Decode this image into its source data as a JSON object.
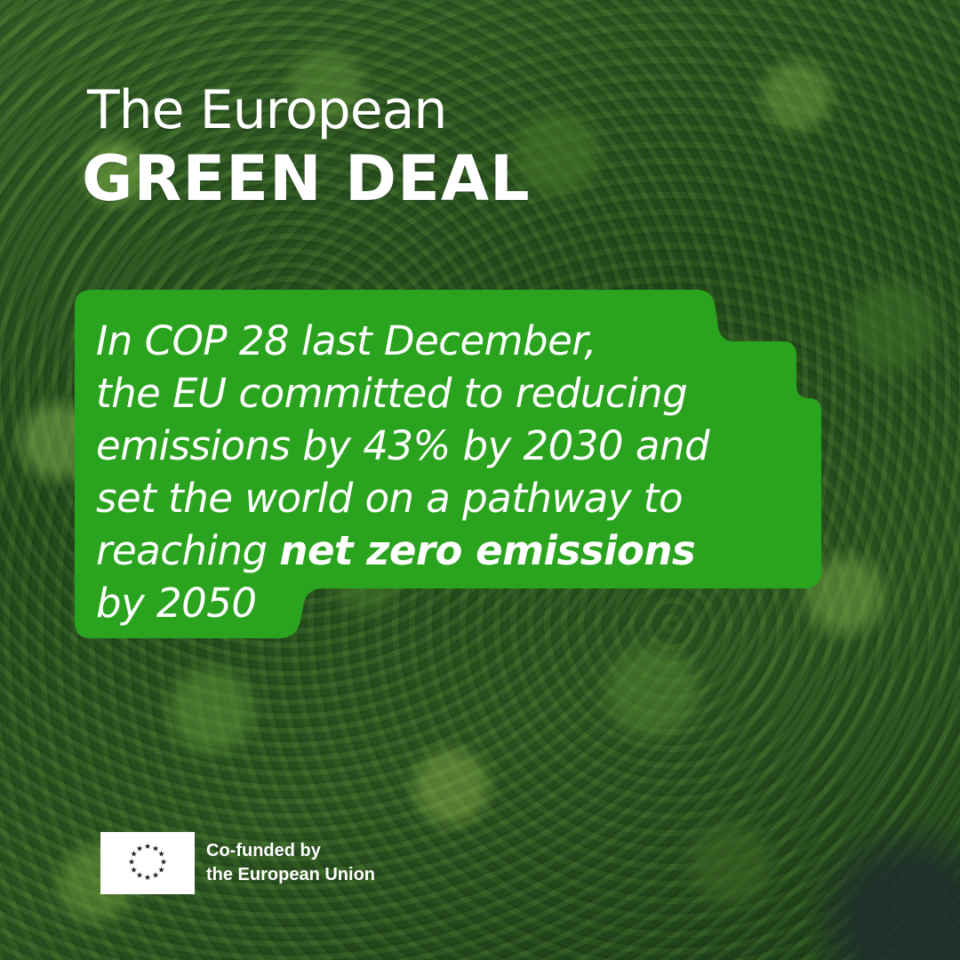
{
  "header": {
    "title_line1": "The European",
    "title_line2": "GREEN DEAL"
  },
  "callout": {
    "line1": "In COP 28 last December,",
    "line2": "the EU committed to reducing",
    "line3": "emissions by 43% by 2030 and",
    "line4": "set the world on a pathway to",
    "line5_prefix": "reaching ",
    "line5_bold": "net zero emissions",
    "line6": "by 2050",
    "background_color": "#2aa41e"
  },
  "footer": {
    "funding_line1": "Co-funded by",
    "funding_line2": "the European Union",
    "flag_icon": "eu-flag-icon"
  },
  "colors": {
    "text": "#ffffff",
    "callout_green": "#2aa41e"
  }
}
